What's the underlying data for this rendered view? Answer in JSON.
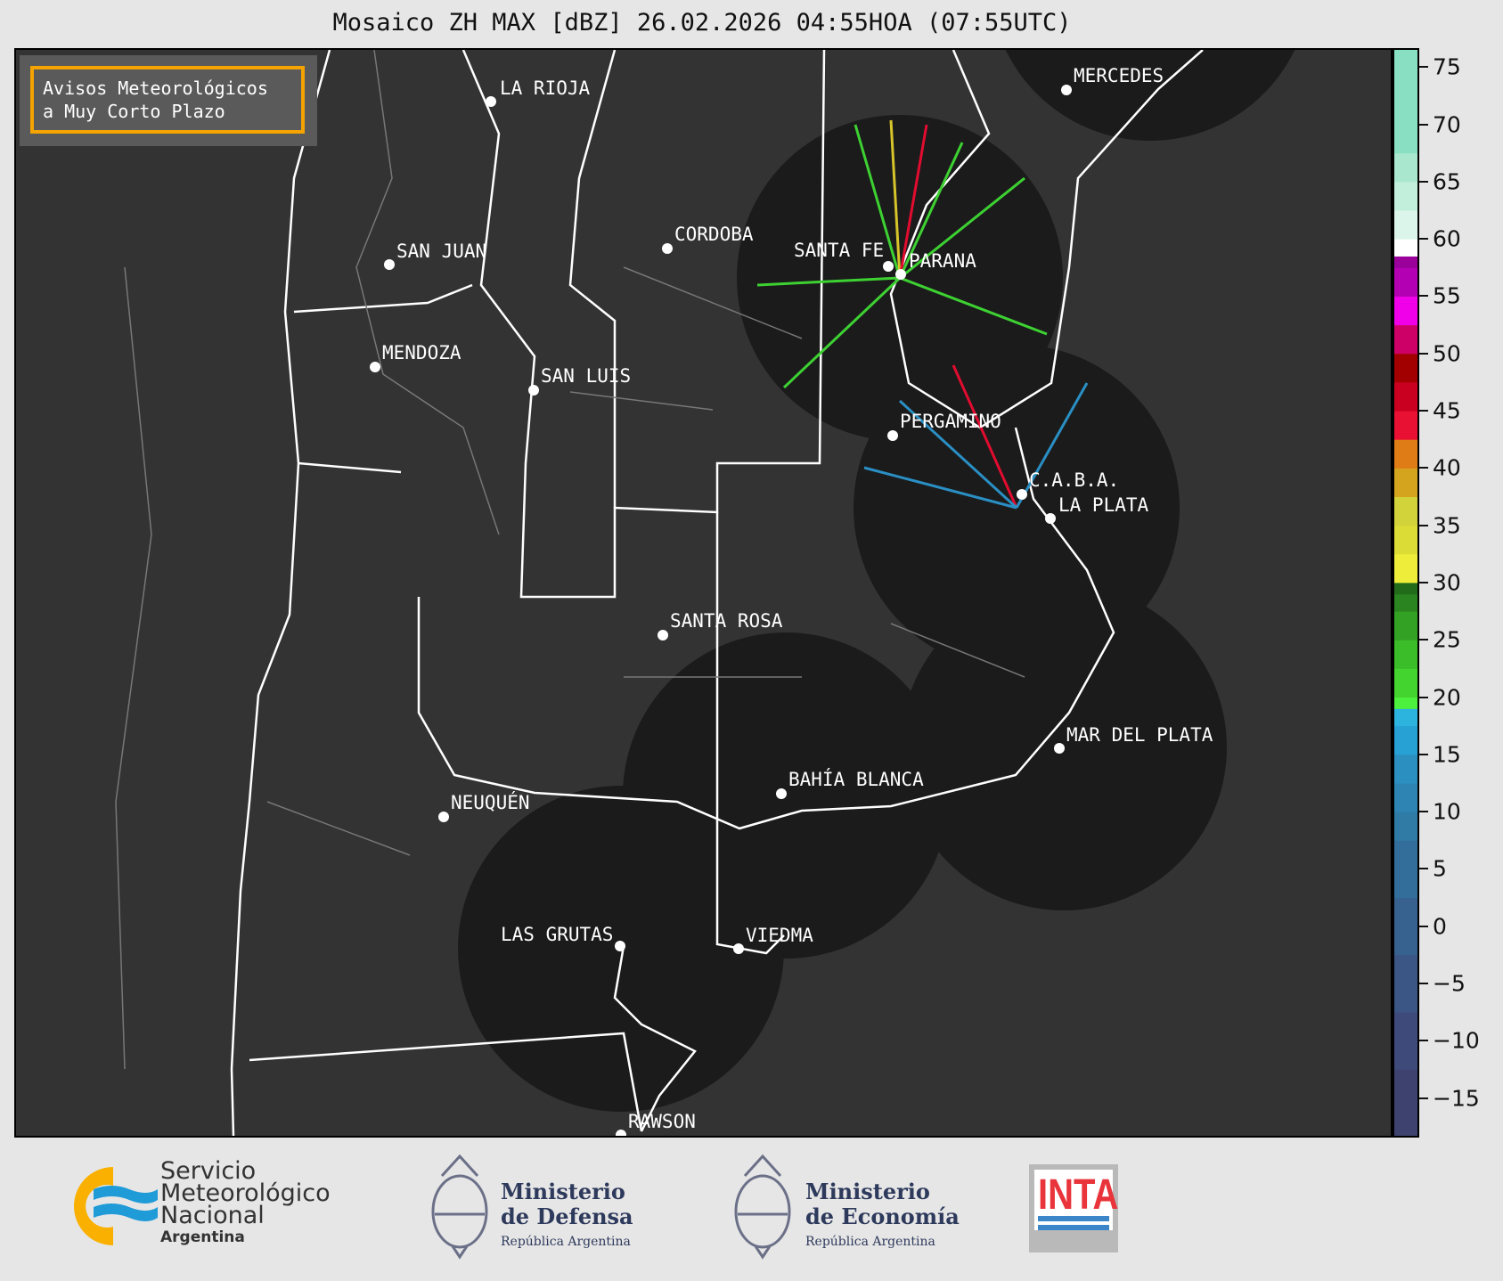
{
  "title": "Mosaico ZH MAX [dBZ] 26.02.2026 04:55HOA (07:55UTC)",
  "notice": {
    "line1": "Avisos Meteorológicos",
    "line2": "a Muy Corto Plazo",
    "border_color": "#f5a300"
  },
  "cities": [
    "LA RIOJA",
    "SAN JUAN",
    "MENDOZA",
    "SAN LUIS",
    "CORDOBA",
    "SANTA FE",
    "PARANA",
    "MERCEDES",
    "PERGAMINO",
    "C.A.B.A.",
    "LA PLATA",
    "SANTA ROSA",
    "MAR DEL PLATA",
    "BAHÍA BLANCA",
    "NEUQUÉN",
    "LAS GRUTAS",
    "VIEDMA",
    "RAWSON"
  ],
  "colorbar": {
    "unit": "dBZ",
    "range": [
      -18.3,
      76.5
    ],
    "ticks": [
      "75",
      "70",
      "65",
      "60",
      "55",
      "50",
      "45",
      "40",
      "35",
      "30",
      "25",
      "20",
      "15",
      "10",
      "5",
      "0",
      "−5",
      "−10",
      "−15"
    ],
    "tick_values": [
      75,
      70,
      65,
      60,
      55,
      50,
      45,
      40,
      35,
      30,
      25,
      20,
      15,
      10,
      5,
      0,
      -5,
      -10,
      -15
    ]
  },
  "logos": {
    "smn": {
      "line1": "Servicio",
      "line2": "Meteorológico",
      "line3": "Nacional",
      "line4": "Argentina"
    },
    "defensa": {
      "line1": "Ministerio",
      "line2": "de Defensa",
      "line3": "República Argentina"
    },
    "economia": {
      "line1": "Ministerio",
      "line2": "de Economía",
      "line3": "República Argentina"
    },
    "inta": {
      "text": "INTA"
    }
  }
}
